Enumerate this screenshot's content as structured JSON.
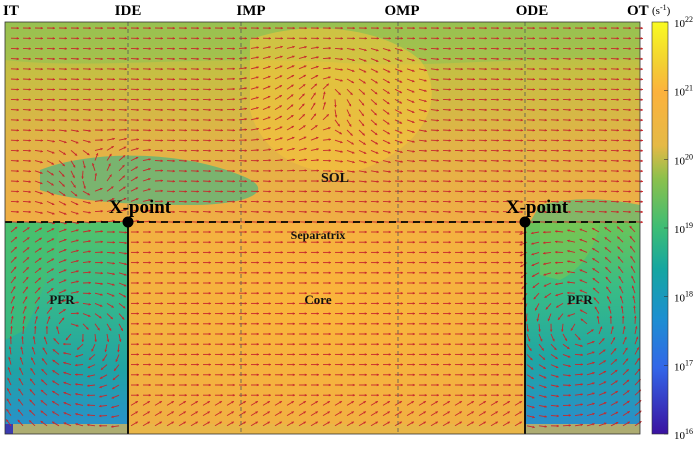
{
  "figure": {
    "top_labels": [
      "IT",
      "IDE",
      "IMP",
      "OMP",
      "ODE",
      "OT"
    ],
    "region_labels": {
      "sol": "SOL",
      "separatrix": "Separatrix",
      "core": "Core",
      "pfr_left": "PFR",
      "pfr_right": "PFR"
    },
    "xpoint_label": "X-point",
    "colorbar": {
      "unit": "(s-1)",
      "ticks": [
        {
          "base": "10",
          "exp": "22"
        },
        {
          "base": "10",
          "exp": "21"
        },
        {
          "base": "10",
          "exp": "20"
        },
        {
          "base": "10",
          "exp": "19"
        },
        {
          "base": "10",
          "exp": "18"
        },
        {
          "base": "10",
          "exp": "17"
        },
        {
          "base": "10",
          "exp": "16"
        }
      ],
      "colors": [
        "#f9fb21",
        "#fbb93c",
        "#3fbc74",
        "#1fa187",
        "#2a7fd1",
        "#3b4fe0",
        "#3a12a0"
      ]
    },
    "arrow_color": "#c8282c",
    "separatrix_style": "dashed",
    "dashed_divisions": "vertical dashed lines at IDE, IMP, OMP, ODE"
  }
}
